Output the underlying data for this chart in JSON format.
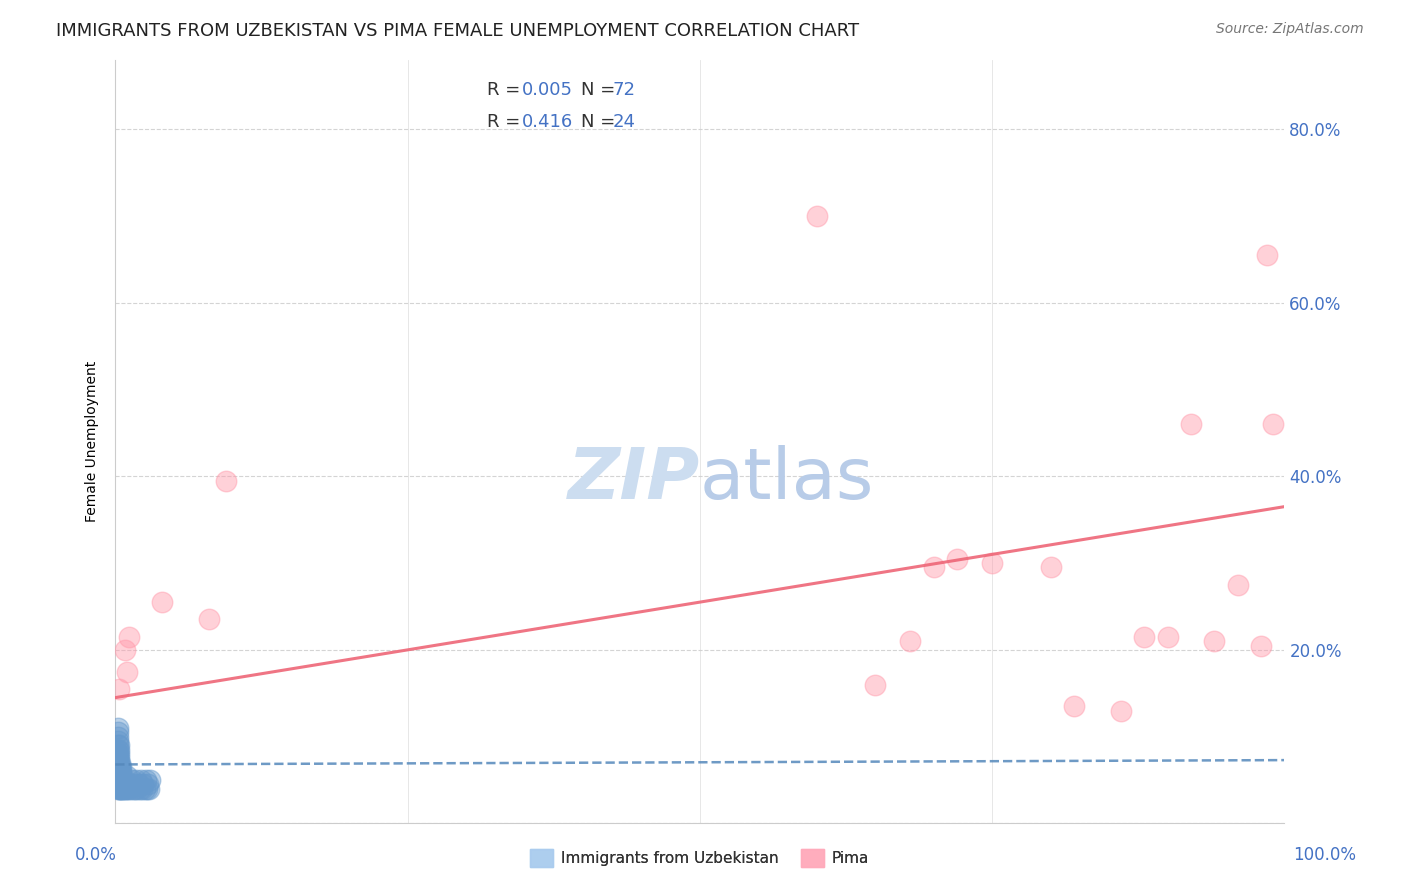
{
  "title": "IMMIGRANTS FROM UZBEKISTAN VS PIMA FEMALE UNEMPLOYMENT CORRELATION CHART",
  "source": "Source: ZipAtlas.com",
  "ylabel": "Female Unemployment",
  "watermark_zip": "ZIP",
  "watermark_atlas": "atlas",
  "bg_color": "#ffffff",
  "plot_bg_color": "#ffffff",
  "grid_color": "#d0d0d0",
  "right_ytick_color": "#4472c4",
  "legend": {
    "blue_r": "0.005",
    "blue_n": "72",
    "pink_r": "0.416",
    "pink_n": "24"
  },
  "blue_scatter_x": [
    0.001,
    0.001,
    0.001,
    0.001,
    0.002,
    0.002,
    0.002,
    0.002,
    0.002,
    0.002,
    0.002,
    0.002,
    0.002,
    0.002,
    0.002,
    0.002,
    0.002,
    0.002,
    0.003,
    0.003,
    0.003,
    0.003,
    0.003,
    0.003,
    0.003,
    0.003,
    0.003,
    0.003,
    0.003,
    0.004,
    0.004,
    0.004,
    0.004,
    0.004,
    0.004,
    0.004,
    0.005,
    0.005,
    0.005,
    0.005,
    0.005,
    0.005,
    0.006,
    0.006,
    0.006,
    0.007,
    0.007,
    0.008,
    0.008,
    0.009,
    0.01,
    0.01,
    0.011,
    0.012,
    0.013,
    0.014,
    0.015,
    0.016,
    0.017,
    0.018,
    0.019,
    0.02,
    0.021,
    0.022,
    0.023,
    0.024,
    0.025,
    0.026,
    0.027,
    0.028,
    0.029,
    0.03
  ],
  "blue_scatter_y": [
    0.045,
    0.06,
    0.07,
    0.085,
    0.04,
    0.05,
    0.055,
    0.06,
    0.065,
    0.07,
    0.075,
    0.08,
    0.085,
    0.09,
    0.095,
    0.1,
    0.105,
    0.11,
    0.04,
    0.045,
    0.05,
    0.055,
    0.06,
    0.065,
    0.07,
    0.075,
    0.08,
    0.085,
    0.09,
    0.04,
    0.045,
    0.05,
    0.055,
    0.06,
    0.065,
    0.07,
    0.04,
    0.045,
    0.05,
    0.055,
    0.06,
    0.065,
    0.04,
    0.045,
    0.05,
    0.04,
    0.05,
    0.04,
    0.05,
    0.04,
    0.045,
    0.055,
    0.04,
    0.045,
    0.04,
    0.05,
    0.04,
    0.045,
    0.04,
    0.05,
    0.04,
    0.045,
    0.04,
    0.05,
    0.04,
    0.045,
    0.04,
    0.05,
    0.04,
    0.045,
    0.04,
    0.05
  ],
  "pink_scatter_x": [
    0.003,
    0.008,
    0.01,
    0.012,
    0.04,
    0.08,
    0.095,
    0.6,
    0.65,
    0.68,
    0.7,
    0.72,
    0.75,
    0.8,
    0.82,
    0.86,
    0.88,
    0.9,
    0.92,
    0.94,
    0.96,
    0.98,
    0.985,
    0.99
  ],
  "pink_scatter_y": [
    0.155,
    0.2,
    0.175,
    0.215,
    0.255,
    0.235,
    0.395,
    0.7,
    0.16,
    0.21,
    0.295,
    0.305,
    0.3,
    0.295,
    0.135,
    0.13,
    0.215,
    0.215,
    0.46,
    0.21,
    0.275,
    0.205,
    0.655,
    0.46
  ],
  "blue_line_x": [
    0.0,
    1.0
  ],
  "blue_line_y": [
    0.068,
    0.073
  ],
  "pink_line_x": [
    0.0,
    1.0
  ],
  "pink_line_y": [
    0.145,
    0.365
  ],
  "yticks_right": [
    0.0,
    0.2,
    0.4,
    0.6,
    0.8
  ],
  "ytick_labels_right": [
    "",
    "20.0%",
    "40.0%",
    "60.0%",
    "80.0%"
  ],
  "xlim": [
    0.0,
    1.0
  ],
  "ylim": [
    0.0,
    0.88
  ],
  "scatter_size": 220,
  "scatter_alpha": 0.45,
  "blue_color": "#6699cc",
  "pink_color": "#ff99aa",
  "blue_line_color": "#5588bb",
  "pink_line_color": "#ee6677",
  "title_fontsize": 13,
  "source_fontsize": 10,
  "axis_label_fontsize": 10,
  "watermark_fontsize_zip": 52,
  "watermark_fontsize_atlas": 52,
  "watermark_color_zip": "#ccddf0",
  "watermark_color_atlas": "#b8cce8"
}
